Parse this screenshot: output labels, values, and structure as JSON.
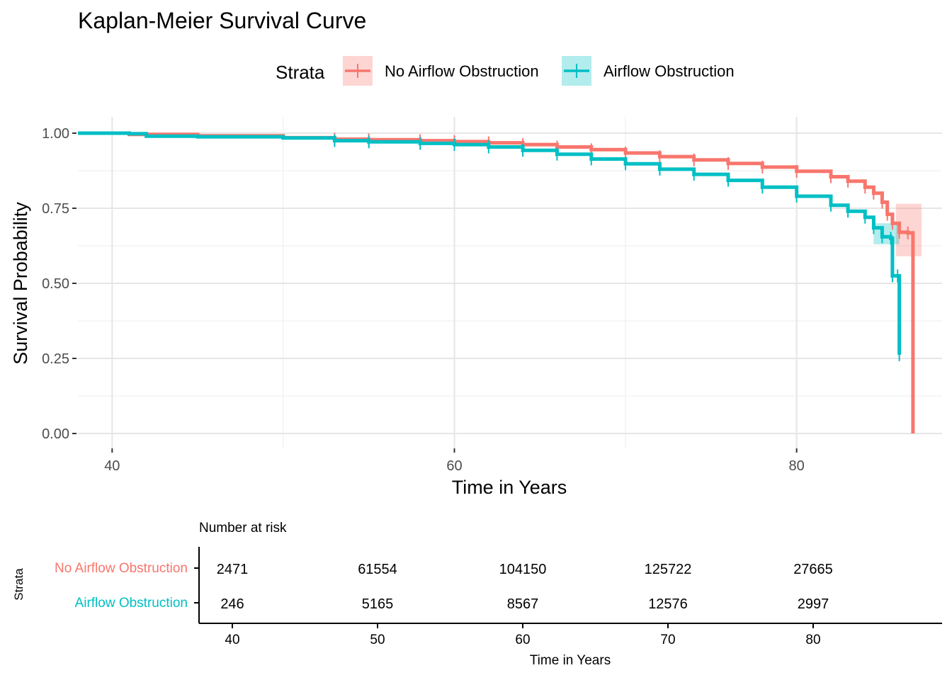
{
  "chart_data": {
    "type": "line",
    "subtype": "kaplan-meier-survival",
    "title": "Kaplan-Meier Survival Curve",
    "xlabel": "Time in Years",
    "ylabel": "Survival Probability",
    "xlim": [
      38,
      88.5
    ],
    "ylim": [
      0,
      1
    ],
    "x_ticks": [
      40,
      60,
      80
    ],
    "y_ticks": [
      0.0,
      0.25,
      0.5,
      0.75,
      1.0
    ],
    "y_tick_labels": [
      "0.00",
      "0.25",
      "0.50",
      "0.75",
      "1.00"
    ],
    "grid": true,
    "legend": {
      "title": "Strata",
      "position": "top"
    },
    "series": [
      {
        "name": "No Airflow Obstruction",
        "color": "#F8766D",
        "x": [
          38,
          41,
          45,
          50,
          53,
          55,
          58,
          60,
          62,
          64,
          66,
          68,
          70,
          72,
          74,
          76,
          78,
          80,
          82,
          83,
          84,
          84.5,
          85,
          85.3,
          85.6,
          86,
          86.5,
          86.8
        ],
        "y": [
          1.0,
          0.996,
          0.991,
          0.985,
          0.98,
          0.978,
          0.975,
          0.972,
          0.968,
          0.962,
          0.954,
          0.945,
          0.934,
          0.922,
          0.911,
          0.899,
          0.887,
          0.873,
          0.855,
          0.84,
          0.82,
          0.8,
          0.77,
          0.73,
          0.7,
          0.67,
          0.668,
          0.0
        ],
        "ci_band": {
          "x": [
            85.8,
            87.3
          ],
          "lower": 0.59,
          "upper": 0.765
        }
      },
      {
        "name": "Airflow Obstruction",
        "color": "#00BFC4",
        "x": [
          38,
          41,
          42,
          45,
          50,
          53,
          55,
          58,
          60,
          62,
          64,
          66,
          68,
          70,
          72,
          74,
          76,
          78,
          80,
          82,
          83,
          84,
          84.5,
          85,
          85.5,
          85.6,
          85.9,
          86.0
        ],
        "y": [
          1.0,
          0.998,
          0.99,
          0.988,
          0.984,
          0.975,
          0.971,
          0.966,
          0.962,
          0.954,
          0.943,
          0.93,
          0.914,
          0.898,
          0.88,
          0.863,
          0.843,
          0.82,
          0.79,
          0.76,
          0.74,
          0.72,
          0.685,
          0.655,
          0.65,
          0.525,
          0.525,
          0.262
        ],
        "ci_band": {
          "x": [
            84.5,
            86.0
          ],
          "lower": 0.63,
          "upper": 0.7
        }
      }
    ],
    "risk_table": {
      "title": "Number at risk",
      "y_label": "Strata",
      "xlabel": "Time in Years",
      "x_ticks": [
        40,
        50,
        60,
        70,
        80
      ],
      "xlim": [
        38,
        88.5
      ],
      "rows": [
        {
          "name": "No Airflow Obstruction",
          "color": "#F8766D",
          "values": [
            "2471",
            "61554",
            "104150",
            "125722",
            "27665"
          ]
        },
        {
          "name": "Airflow Obstruction",
          "color": "#00BFC4",
          "values": [
            "246",
            "5165",
            "8567",
            "12576",
            "2997"
          ]
        }
      ]
    }
  }
}
